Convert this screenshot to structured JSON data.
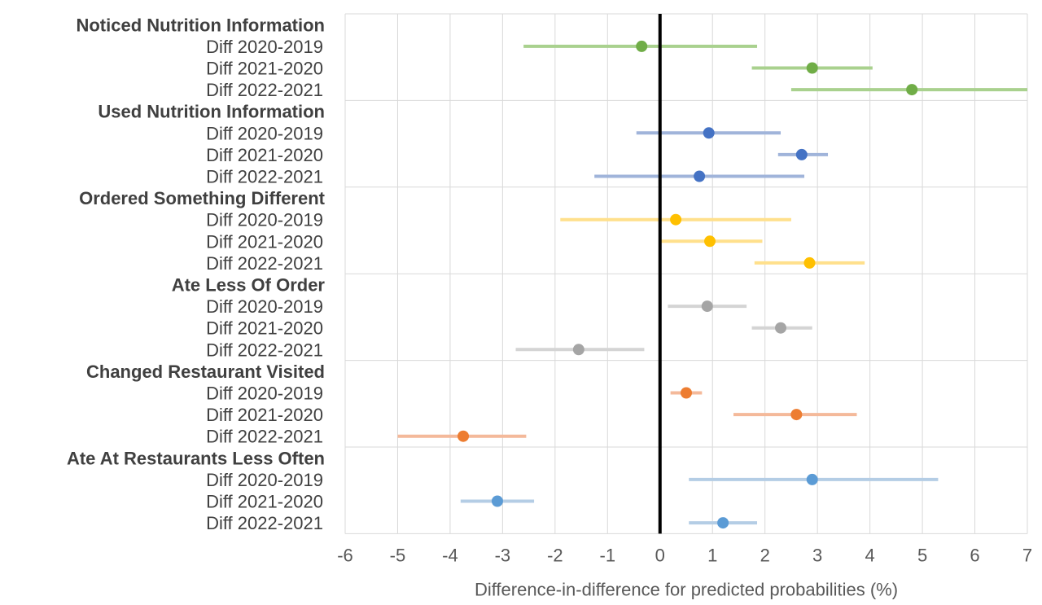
{
  "chart_data": {
    "type": "forest",
    "xlabel": "Difference-in-difference for predicted probabilities (%)",
    "xlim": [
      -6,
      7
    ],
    "xticks": [
      -6,
      -5,
      -4,
      -3,
      -2,
      -1,
      0,
      1,
      2,
      3,
      4,
      5,
      6,
      7
    ],
    "reference_line": 0,
    "grid": true,
    "groups": [
      {
        "name": "Noticed Nutrition Information",
        "color": "#70ad47",
        "ci_color": "#a9d18e",
        "rows": [
          {
            "label": "Diff 2020-2019",
            "estimate": -0.35,
            "lower": -2.6,
            "upper": 1.85
          },
          {
            "label": "Diff 2021-2020",
            "estimate": 2.9,
            "lower": 1.75,
            "upper": 4.05
          },
          {
            "label": "Diff 2022-2021",
            "estimate": 4.8,
            "lower": 2.5,
            "upper": 7.0
          }
        ]
      },
      {
        "name": "Used Nutrition Information",
        "color": "#4472c4",
        "ci_color": "#a0b4da",
        "rows": [
          {
            "label": "Diff 2020-2019",
            "estimate": 0.93,
            "lower": -0.45,
            "upper": 2.3
          },
          {
            "label": "Diff 2021-2020",
            "estimate": 2.7,
            "lower": 2.25,
            "upper": 3.2
          },
          {
            "label": "Diff 2022-2021",
            "estimate": 0.75,
            "lower": -1.25,
            "upper": 2.75
          }
        ]
      },
      {
        "name": "Ordered Something Different",
        "color": "#ffc000",
        "ci_color": "#ffe08c",
        "rows": [
          {
            "label": "Diff 2020-2019",
            "estimate": 0.3,
            "lower": -1.9,
            "upper": 2.5
          },
          {
            "label": "Diff 2021-2020",
            "estimate": 0.95,
            "lower": 0.0,
            "upper": 1.95
          },
          {
            "label": "Diff 2022-2021",
            "estimate": 2.85,
            "lower": 1.8,
            "upper": 3.9
          }
        ]
      },
      {
        "name": "Ate Less Of Order",
        "color": "#a5a5a5",
        "ci_color": "#d4d4d4",
        "rows": [
          {
            "label": "Diff 2020-2019",
            "estimate": 0.9,
            "lower": 0.15,
            "upper": 1.65
          },
          {
            "label": "Diff 2021-2020",
            "estimate": 2.3,
            "lower": 1.75,
            "upper": 2.9
          },
          {
            "label": "Diff 2022-2021",
            "estimate": -1.55,
            "lower": -2.75,
            "upper": -0.3
          }
        ]
      },
      {
        "name": "Changed Restaurant Visited",
        "color": "#ed7d31",
        "ci_color": "#f4b99a",
        "rows": [
          {
            "label": "Diff 2020-2019",
            "estimate": 0.5,
            "lower": 0.2,
            "upper": 0.8
          },
          {
            "label": "Diff 2021-2020",
            "estimate": 2.6,
            "lower": 1.4,
            "upper": 3.75
          },
          {
            "label": "Diff 2022-2021",
            "estimate": -3.75,
            "lower": -5.0,
            "upper": -2.55
          }
        ]
      },
      {
        "name": "Ate At Restaurants Less Often",
        "color": "#5b9bd5",
        "ci_color": "#b4cde5",
        "rows": [
          {
            "label": "Diff 2020-2019",
            "estimate": 2.9,
            "lower": 0.55,
            "upper": 5.3
          },
          {
            "label": "Diff 2021-2020",
            "estimate": -3.1,
            "lower": -3.8,
            "upper": -2.4
          },
          {
            "label": "Diff 2022-2021",
            "estimate": 1.2,
            "lower": 0.55,
            "upper": 1.85
          }
        ]
      }
    ]
  }
}
